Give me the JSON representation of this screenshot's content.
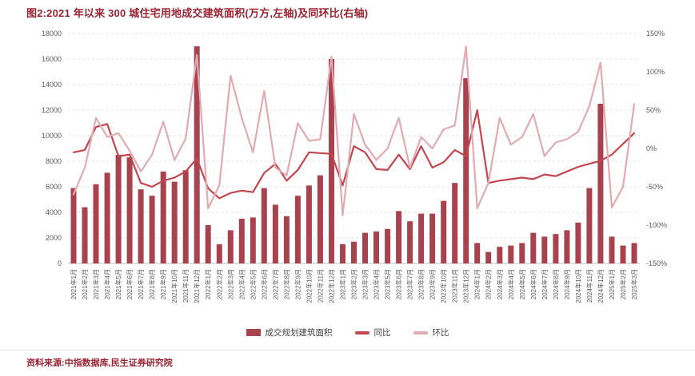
{
  "title": "图2:2021 年以来 300 城住宅用地成交建筑面积(万方,左轴)及同环比(右轴)",
  "footer": "资料来源:中指数据库,民生证券研究院",
  "colors": {
    "title": "#9b2433",
    "bar": "#a8424e",
    "yoy": "#c2474f",
    "mom": "#e2aab1",
    "grid": "#e2e2e2",
    "axis_line": "#bfbfbf",
    "axis_text": "#595959"
  },
  "legend": {
    "items": [
      {
        "label": "成交规划建筑面积"
      },
      {
        "label": "同比"
      },
      {
        "label": "环比"
      }
    ]
  },
  "chart_data": {
    "type": "bar+line",
    "title": "图2:2021 年以来 300 城住宅用地成交建筑面积(万方,左轴)及同环比(右轴)",
    "left_axis": {
      "label": "成交建筑面积(万方)",
      "min": 0,
      "max": 18000,
      "ticks": [
        0,
        2000,
        4000,
        6000,
        8000,
        10000,
        12000,
        14000,
        16000,
        18000
      ]
    },
    "right_axis": {
      "label": "同环比(%)",
      "min": -150,
      "max": 150,
      "ticks": [
        -150,
        -100,
        -50,
        0,
        50,
        100,
        150
      ]
    },
    "grid": true,
    "legend_position": "bottom",
    "categories": [
      "2021年1月",
      "2021年2月",
      "2021年3月",
      "2021年4月",
      "2021年5月",
      "2021年6月",
      "2021年7月",
      "2021年8月",
      "2021年9月",
      "2021年10月",
      "2021年11月",
      "2021年12月",
      "2022年1月",
      "2022年2月",
      "2022年3月",
      "2022年4月",
      "2022年5月",
      "2022年6月",
      "2022年7月",
      "2022年8月",
      "2022年9月",
      "2022年10月",
      "2022年11月",
      "2022年12月",
      "2023年1月",
      "2023年2月",
      "2023年3月",
      "2023年4月",
      "2023年5月",
      "2023年6月",
      "2023年7月",
      "2023年8月",
      "2023年9月",
      "2023年10月",
      "2023年11月",
      "2023年12月",
      "2024年1月",
      "2024年2月",
      "2024年3月",
      "2024年4月",
      "2024年5月",
      "2024年6月",
      "2024年7月",
      "2024年8月",
      "2024年9月",
      "2024年10月",
      "2024年11月",
      "2024年12月",
      "2025年1月",
      "2025年2月",
      "2025年3月"
    ],
    "series": [
      {
        "name": "成交规划建筑面积",
        "type": "bar",
        "axis": "left",
        "values": [
          5900,
          4400,
          6200,
          7100,
          8500,
          8300,
          5800,
          5300,
          7200,
          6400,
          7300,
          17000,
          3000,
          1500,
          2600,
          3500,
          3600,
          5900,
          4600,
          3700,
          5300,
          6100,
          6900,
          16000,
          1500,
          1700,
          2400,
          2500,
          2700,
          4100,
          3300,
          3900,
          3900,
          4900,
          6300,
          14500,
          1600,
          900,
          1300,
          1400,
          1600,
          2400,
          2100,
          2300,
          2600,
          3200,
          5900,
          12500,
          2100,
          1400,
          1600
        ]
      },
      {
        "name": "同比",
        "type": "line",
        "axis": "right",
        "unit": "%",
        "values": [
          -5,
          -2,
          28,
          32,
          -10,
          -8,
          -45,
          -50,
          -42,
          -38,
          -30,
          -13,
          -52,
          -65,
          -58,
          -55,
          -57,
          -32,
          -20,
          -42,
          -28,
          -5,
          -6,
          -7,
          -48,
          3,
          -5,
          -27,
          -28,
          -8,
          -27,
          3,
          -25,
          -18,
          -2,
          -10,
          50,
          -45,
          -42,
          -40,
          -38,
          -40,
          -34,
          -36,
          -30,
          -24,
          -20,
          -16,
          -8,
          6,
          20
        ]
      },
      {
        "name": "环比",
        "type": "line",
        "axis": "right",
        "unit": "%",
        "values": [
          -60,
          -25,
          40,
          15,
          20,
          -3,
          -30,
          -8,
          35,
          -15,
          13,
          122,
          -78,
          -48,
          95,
          40,
          -5,
          75,
          -25,
          -35,
          33,
          10,
          12,
          120,
          -87,
          45,
          5,
          -15,
          0,
          40,
          -25,
          15,
          0,
          25,
          30,
          133,
          -78,
          -45,
          40,
          5,
          15,
          45,
          -10,
          8,
          12,
          22,
          55,
          112,
          -77,
          -50,
          58
        ]
      }
    ]
  }
}
